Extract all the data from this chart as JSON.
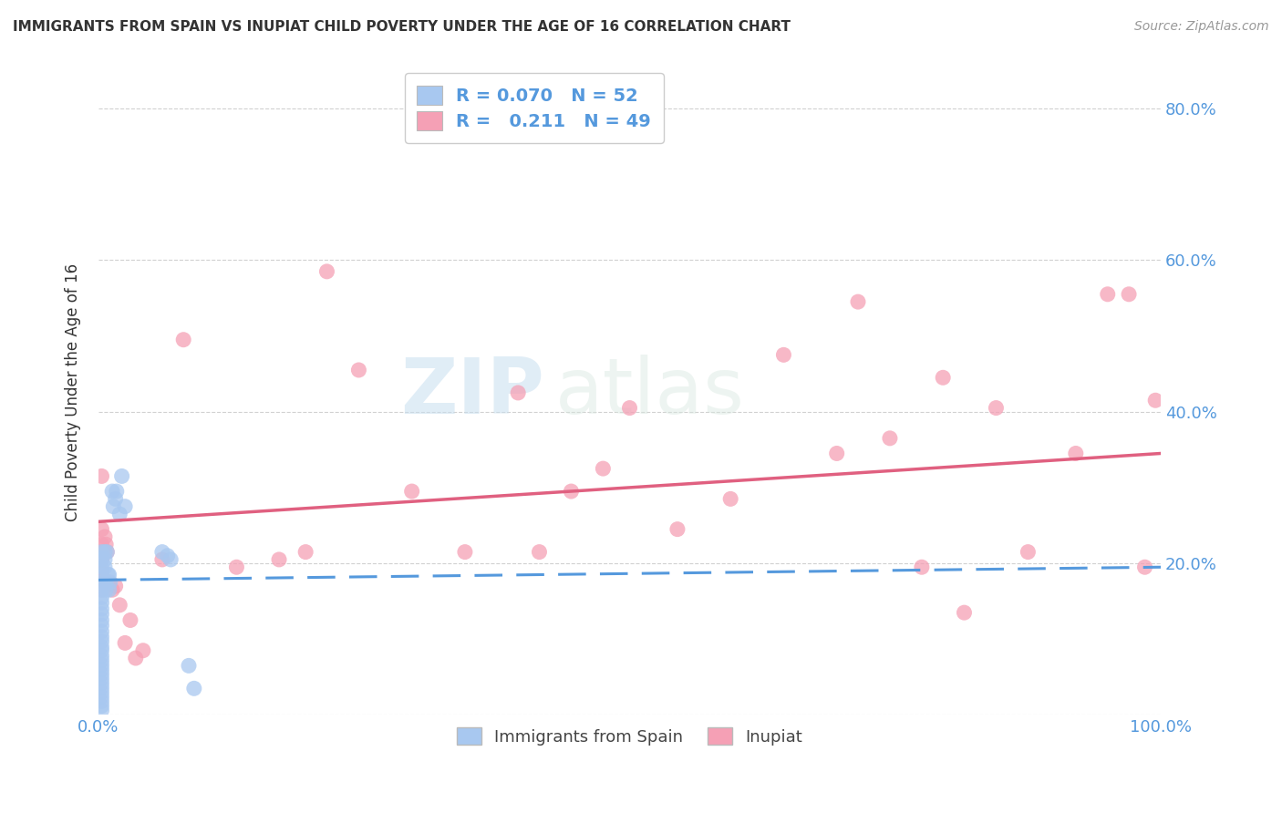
{
  "title": "IMMIGRANTS FROM SPAIN VS INUPIAT CHILD POVERTY UNDER THE AGE OF 16 CORRELATION CHART",
  "source": "Source: ZipAtlas.com",
  "ylabel": "Child Poverty Under the Age of 16",
  "xlim": [
    0.0,
    1.0
  ],
  "ylim": [
    0.0,
    0.85
  ],
  "legend_R1": "0.070",
  "legend_N1": "52",
  "legend_R2": "0.211",
  "legend_N2": "49",
  "blue_color": "#a8c8f0",
  "pink_color": "#f5a0b5",
  "blue_line_color": "#5599dd",
  "pink_line_color": "#e06080",
  "watermark_zip": "ZIP",
  "watermark_atlas": "atlas",
  "background_color": "#ffffff",
  "grid_color": "#cccccc",
  "scatter_blue_x": [
    0.003,
    0.003,
    0.003,
    0.003,
    0.003,
    0.003,
    0.003,
    0.003,
    0.003,
    0.003,
    0.003,
    0.003,
    0.003,
    0.003,
    0.003,
    0.003,
    0.003,
    0.003,
    0.003,
    0.003,
    0.003,
    0.003,
    0.003,
    0.003,
    0.003,
    0.003,
    0.003,
    0.003,
    0.003,
    0.003,
    0.006,
    0.006,
    0.006,
    0.007,
    0.007,
    0.008,
    0.009,
    0.01,
    0.01,
    0.011,
    0.013,
    0.014,
    0.016,
    0.017,
    0.02,
    0.022,
    0.025,
    0.06,
    0.065,
    0.068,
    0.085,
    0.09
  ],
  "scatter_blue_y": [
    0.215,
    0.205,
    0.195,
    0.185,
    0.175,
    0.165,
    0.155,
    0.148,
    0.14,
    0.133,
    0.125,
    0.118,
    0.11,
    0.103,
    0.097,
    0.09,
    0.085,
    0.078,
    0.072,
    0.066,
    0.06,
    0.054,
    0.048,
    0.042,
    0.036,
    0.03,
    0.024,
    0.018,
    0.012,
    0.006,
    0.215,
    0.205,
    0.195,
    0.175,
    0.165,
    0.215,
    0.185,
    0.165,
    0.185,
    0.175,
    0.295,
    0.275,
    0.285,
    0.295,
    0.265,
    0.315,
    0.275,
    0.215,
    0.21,
    0.205,
    0.065,
    0.035
  ],
  "scatter_pink_x": [
    0.003,
    0.003,
    0.003,
    0.003,
    0.003,
    0.003,
    0.003,
    0.003,
    0.006,
    0.007,
    0.008,
    0.01,
    0.013,
    0.016,
    0.02,
    0.025,
    0.03,
    0.035,
    0.042,
    0.06,
    0.08,
    0.13,
    0.17,
    0.195,
    0.215,
    0.245,
    0.295,
    0.345,
    0.395,
    0.415,
    0.445,
    0.475,
    0.5,
    0.545,
    0.595,
    0.645,
    0.695,
    0.715,
    0.745,
    0.775,
    0.795,
    0.815,
    0.845,
    0.875,
    0.92,
    0.95,
    0.97,
    0.985,
    0.995
  ],
  "scatter_pink_y": [
    0.315,
    0.245,
    0.225,
    0.215,
    0.205,
    0.19,
    0.178,
    0.165,
    0.235,
    0.225,
    0.215,
    0.175,
    0.165,
    0.17,
    0.145,
    0.095,
    0.125,
    0.075,
    0.085,
    0.205,
    0.495,
    0.195,
    0.205,
    0.215,
    0.585,
    0.455,
    0.295,
    0.215,
    0.425,
    0.215,
    0.295,
    0.325,
    0.405,
    0.245,
    0.285,
    0.475,
    0.345,
    0.545,
    0.365,
    0.195,
    0.445,
    0.135,
    0.405,
    0.215,
    0.345,
    0.555,
    0.555,
    0.195,
    0.415
  ],
  "blue_trend_y_start": 0.178,
  "blue_trend_y_end": 0.195,
  "pink_trend_y_start": 0.255,
  "pink_trend_y_end": 0.345
}
